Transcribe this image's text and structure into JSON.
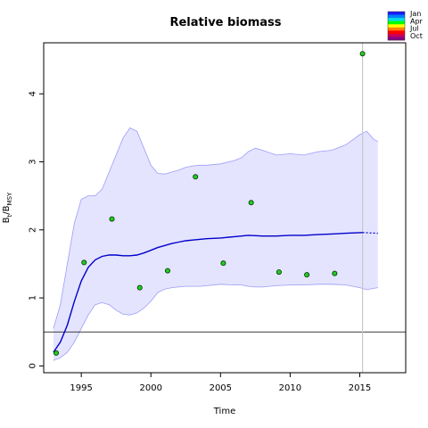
{
  "chart_data": {
    "type": "line",
    "title": "Relative biomass",
    "xlabel": "Time",
    "ylabel_main": "B",
    "ylabel_sub1": "t",
    "ylabel_mid": "/B",
    "ylabel_sub2": "MSY",
    "xlim": [
      1992.3,
      2018.3
    ],
    "ylim": [
      -0.1,
      4.75
    ],
    "x_ticks": [
      1995,
      2000,
      2005,
      2010,
      2015
    ],
    "y_ticks": [
      0,
      1,
      2,
      3,
      4
    ],
    "reference_line_y": 0.5,
    "current_year_line_x": 2015.2,
    "legend": {
      "labels": [
        "Jan",
        "Apr",
        "Jul",
        "Oct"
      ],
      "colors": [
        "#1a1aff",
        "#0080ff",
        "#00e0e0",
        "#00ff00",
        "#ffff00",
        "#ff8000",
        "#ff0000",
        "#cc0055",
        "#880088"
      ]
    },
    "colors": {
      "median": "#0000cc",
      "band_fill": "#e4e4ff",
      "band_edge": "#9c9cf6",
      "point_fill": "#22cc22",
      "point_stroke": "#003300",
      "vline": "#c8c8c8"
    },
    "series": [
      {
        "x": [
          1993,
          1993.5,
          1994,
          1994.5,
          1995,
          1995.5,
          1996,
          1996.5,
          1997,
          1997.5,
          1998,
          1998.5,
          1999,
          1999.5,
          2000,
          2000.5,
          2001,
          2001.5,
          2002,
          2002.5,
          2003,
          2004,
          2005,
          2006,
          2007,
          2008,
          2009,
          2010,
          2011,
          2012,
          2013,
          2014,
          2015.2
        ],
        "values": [
          0.2,
          0.35,
          0.6,
          0.95,
          1.25,
          1.45,
          1.56,
          1.61,
          1.63,
          1.63,
          1.62,
          1.62,
          1.63,
          1.66,
          1.7,
          1.74,
          1.77,
          1.8,
          1.82,
          1.84,
          1.85,
          1.87,
          1.88,
          1.9,
          1.92,
          1.91,
          1.91,
          1.92,
          1.92,
          1.93,
          1.94,
          1.95,
          1.96
        ]
      },
      {
        "x": [
          2015.2,
          2016.3
        ],
        "values": [
          1.96,
          1.95
        ]
      }
    ],
    "band": {
      "x": [
        1993,
        1993.5,
        1994,
        1994.5,
        1995,
        1995.5,
        1996,
        1996.5,
        1997,
        1997.5,
        1998,
        1998.5,
        1999,
        1999.5,
        2000,
        2000.5,
        2001,
        2001.5,
        2002,
        2002.5,
        2003,
        2003.5,
        2004,
        2005,
        2006,
        2006.5,
        2007,
        2007.5,
        2008,
        2009,
        2010,
        2011,
        2012,
        2013,
        2014,
        2015,
        2015.5,
        2016,
        2016.3
      ],
      "upper": [
        0.55,
        0.9,
        1.5,
        2.1,
        2.45,
        2.5,
        2.5,
        2.6,
        2.85,
        3.1,
        3.35,
        3.5,
        3.45,
        3.2,
        2.95,
        2.83,
        2.82,
        2.85,
        2.88,
        2.92,
        2.94,
        2.95,
        2.95,
        2.97,
        3.02,
        3.06,
        3.15,
        3.2,
        3.17,
        3.1,
        3.12,
        3.1,
        3.15,
        3.17,
        3.25,
        3.4,
        3.45,
        3.33,
        3.3
      ],
      "lower": [
        0.08,
        0.12,
        0.2,
        0.35,
        0.55,
        0.75,
        0.9,
        0.93,
        0.9,
        0.82,
        0.76,
        0.75,
        0.78,
        0.85,
        0.95,
        1.08,
        1.13,
        1.15,
        1.16,
        1.17,
        1.17,
        1.17,
        1.18,
        1.2,
        1.19,
        1.19,
        1.17,
        1.16,
        1.16,
        1.18,
        1.19,
        1.19,
        1.2,
        1.2,
        1.19,
        1.15,
        1.12,
        1.14,
        1.15
      ]
    },
    "observations": {
      "x": [
        1993.2,
        1995.2,
        1997.2,
        1999.2,
        2001.2,
        2003.2,
        2005.2,
        2007.2,
        2009.2,
        2011.2,
        2013.2,
        2015.2
      ],
      "values": [
        0.19,
        1.52,
        2.16,
        1.15,
        1.4,
        2.78,
        1.51,
        2.4,
        1.38,
        1.34,
        1.36,
        4.59
      ]
    }
  }
}
